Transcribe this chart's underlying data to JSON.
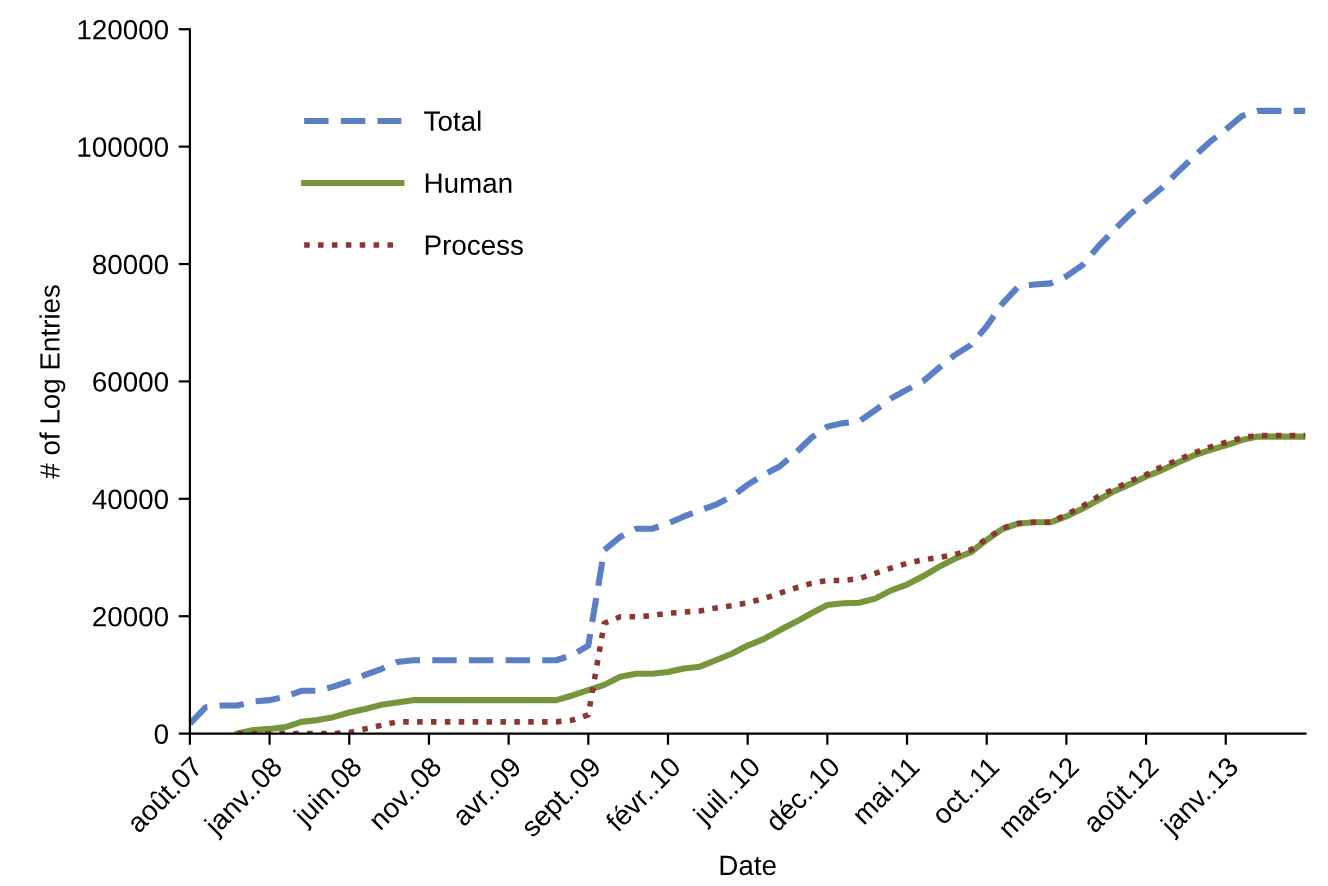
{
  "chart_data": {
    "type": "line",
    "xlabel": "Date",
    "ylabel": "# of Log Entries",
    "categories": [
      "août.07",
      null,
      null,
      null,
      null,
      "janv..08",
      null,
      null,
      null,
      null,
      "juin.08",
      null,
      null,
      null,
      null,
      "nov..08",
      null,
      null,
      null,
      null,
      "avr..09",
      null,
      null,
      null,
      null,
      "sept..09",
      null,
      null,
      null,
      null,
      "févr..10",
      null,
      null,
      null,
      null,
      "juil..10",
      null,
      null,
      null,
      null,
      "déc..10",
      null,
      null,
      null,
      null,
      "mai.11",
      null,
      null,
      null,
      null,
      "oct..11",
      null,
      null,
      null,
      null,
      "mars.12",
      null,
      null,
      null,
      null,
      "août.12",
      null,
      null,
      null,
      null,
      "janv..13",
      null,
      null,
      null,
      null,
      null
    ],
    "ylim": [
      0,
      120000
    ],
    "yticks": [
      0,
      20000,
      40000,
      60000,
      80000,
      100000,
      120000
    ],
    "grid": false,
    "legend": "top left",
    "marker": "none",
    "series": [
      {
        "name": "Total",
        "color": "#5a7fc4",
        "line_style": "dashed",
        "values": [
          1700,
          4500,
          4800,
          4800,
          5500,
          5700,
          6300,
          7300,
          7300,
          8000,
          8900,
          10000,
          11000,
          12200,
          12500,
          12500,
          12500,
          12500,
          12500,
          12500,
          12500,
          12500,
          12500,
          12500,
          13400,
          15000,
          31300,
          33500,
          34900,
          34900,
          35800,
          37000,
          38000,
          39000,
          40400,
          42400,
          44100,
          45500,
          47800,
          50400,
          52300,
          52900,
          53200,
          55100,
          57100,
          58600,
          60000,
          62300,
          64500,
          66200,
          69400,
          73300,
          76200,
          76500,
          76700,
          77900,
          79800,
          83000,
          85800,
          88500,
          90700,
          93000,
          95700,
          98300,
          100800,
          102900,
          105200,
          106100,
          106100,
          106100,
          106100
        ]
      },
      {
        "name": "Human",
        "color": "#77963c",
        "line_style": "solid",
        "values": [
          null,
          null,
          null,
          0,
          600,
          800,
          1100,
          2000,
          2300,
          2800,
          3600,
          4200,
          4900,
          5300,
          5700,
          5700,
          5700,
          5700,
          5700,
          5700,
          5700,
          5700,
          5700,
          5700,
          6500,
          7400,
          8300,
          9700,
          10200,
          10200,
          10500,
          11100,
          11400,
          12500,
          13600,
          15000,
          16100,
          17600,
          19000,
          20500,
          21900,
          22200,
          22300,
          23000,
          24400,
          25400,
          26800,
          28400,
          29800,
          30900,
          33000,
          34900,
          35800,
          36000,
          36000,
          37000,
          38300,
          39800,
          41300,
          42500,
          43800,
          44900,
          46200,
          47400,
          48300,
          49100,
          50000,
          50600,
          50600,
          50600,
          50600
        ]
      },
      {
        "name": "Process",
        "color": "#8c3634",
        "line_style": "dotted",
        "values": [
          null,
          null,
          null,
          0,
          0,
          0,
          0,
          0,
          0,
          0,
          200,
          800,
          1400,
          2000,
          2000,
          2000,
          2000,
          2000,
          2000,
          2000,
          2000,
          2000,
          2000,
          2000,
          2300,
          3200,
          18800,
          19900,
          19900,
          20100,
          20500,
          20700,
          20900,
          21400,
          21800,
          22300,
          23000,
          23900,
          24800,
          25600,
          26100,
          26100,
          26400,
          27300,
          28200,
          29000,
          29600,
          30000,
          30500,
          31300,
          33200,
          35000,
          35800,
          36000,
          36000,
          37300,
          38700,
          40400,
          41700,
          43000,
          44100,
          45500,
          46600,
          47800,
          48800,
          49600,
          50400,
          50800,
          50800,
          50800,
          50800
        ]
      }
    ]
  }
}
